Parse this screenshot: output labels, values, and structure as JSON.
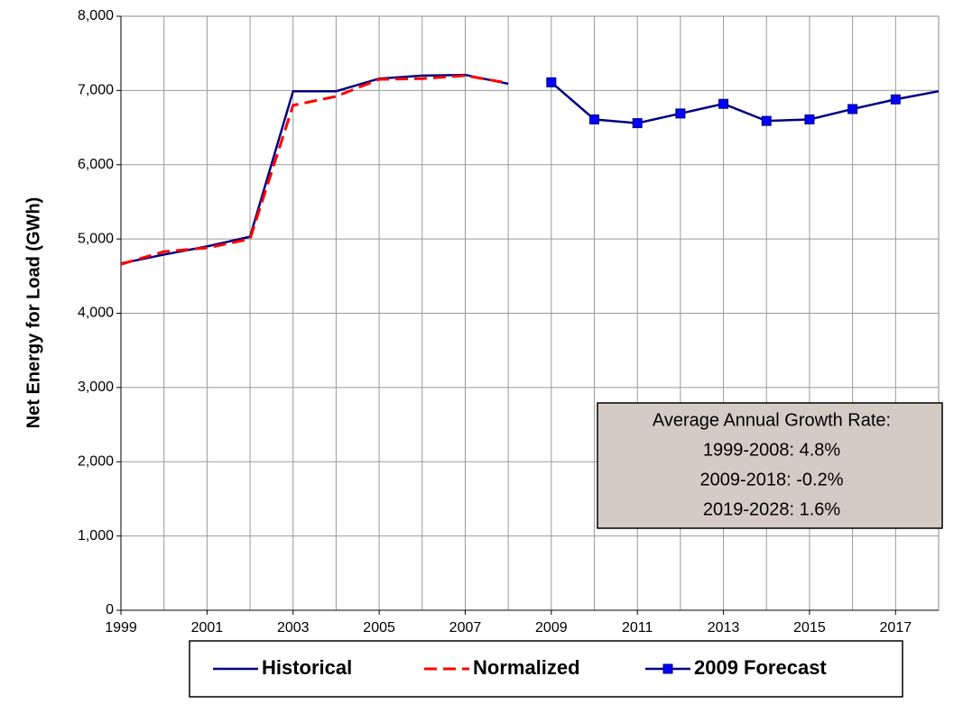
{
  "chart_data": {
    "type": "line",
    "y_label": "Net Energy for Load (GWh)",
    "x": [
      1999,
      2000,
      2001,
      2002,
      2003,
      2004,
      2005,
      2006,
      2007,
      2008,
      2009,
      2010,
      2011,
      2012,
      2013,
      2014,
      2015,
      2016,
      2017,
      2018
    ],
    "series": [
      {
        "name": "Historical",
        "color": "#000080",
        "dash": false,
        "marker": false,
        "values": [
          4670,
          4790,
          4900,
          5030,
          6990,
          6990,
          7160,
          7200,
          7210,
          7090,
          null,
          null,
          null,
          null,
          null,
          null,
          null,
          null,
          null,
          null
        ]
      },
      {
        "name": "Normalized",
        "color": "#ff0000",
        "dash": true,
        "marker": false,
        "values": [
          4660,
          4830,
          4880,
          5000,
          6800,
          6920,
          7150,
          7160,
          7200,
          7100,
          null,
          null,
          null,
          null,
          null,
          null,
          null,
          null,
          null,
          null
        ]
      },
      {
        "name": "2009 Forecast",
        "color": "#000080",
        "dash": false,
        "marker": true,
        "values": [
          null,
          null,
          null,
          null,
          null,
          null,
          null,
          null,
          null,
          null,
          7110,
          6610,
          6560,
          6690,
          6820,
          6590,
          6610,
          6750,
          6880,
          6990
        ]
      }
    ],
    "xlim": [
      1999,
      2018
    ],
    "xticks": [
      1999,
      2001,
      2003,
      2005,
      2007,
      2009,
      2011,
      2013,
      2015,
      2017
    ],
    "ylim": [
      0,
      8000
    ],
    "yticks": [
      0,
      {
        "value": 1000,
        "label": "1,000"
      },
      {
        "value": 2000,
        "label": "2,000"
      },
      {
        "value": 3000,
        "label": "3,000"
      },
      {
        "value": 4000,
        "label": "4,000"
      },
      {
        "value": 5000,
        "label": "5,000"
      },
      {
        "value": 6000,
        "label": "6,000"
      },
      {
        "value": 7000,
        "label": "7,000"
      },
      {
        "value": 8000,
        "label": "8,000"
      }
    ],
    "grid": true,
    "legend": "bottom",
    "annotation": [
      "Average Annual Growth Rate:",
      "1999-2008: 4.8%",
      "2009-2018: -0.2%",
      "2019-2028: 1.6%"
    ]
  }
}
